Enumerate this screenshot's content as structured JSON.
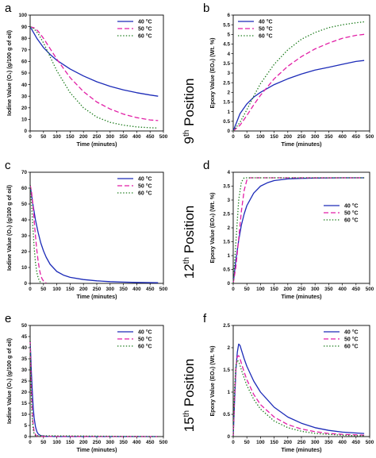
{
  "series_styles": [
    {
      "name": "40 °C",
      "color": "#1c2bb8",
      "dash": ""
    },
    {
      "name": "50 °C",
      "color": "#e21fa6",
      "dash": "6,3"
    },
    {
      "name": "60 °C",
      "color": "#1a7a1a",
      "dash": "1.4,2.2"
    }
  ],
  "positions": [
    {
      "ordinal": "9",
      "suffix": "th",
      "word": " Position"
    },
    {
      "ordinal": "12",
      "suffix": "th",
      "word": " Position"
    },
    {
      "ordinal": "15",
      "suffix": "th",
      "word": " Position"
    }
  ],
  "chart_data": [
    {
      "panel": "a",
      "type": "line",
      "xlabel": "Time (minutes)",
      "ylabel": "Iodine Value (O₁) (g/100 g of oil)",
      "xlim": [
        0,
        500
      ],
      "ylim": [
        0,
        100
      ],
      "xticks": [
        0,
        50,
        100,
        150,
        200,
        250,
        300,
        350,
        400,
        450,
        500
      ],
      "yticks": [
        0,
        10,
        20,
        30,
        40,
        50,
        60,
        70,
        80,
        90,
        100
      ],
      "legend": "top-right",
      "series": [
        {
          "name": "40 °C",
          "x": [
            0,
            25,
            50,
            75,
            100,
            150,
            200,
            250,
            300,
            350,
            400,
            450,
            480
          ],
          "y": [
            90,
            80,
            72,
            66,
            61,
            53.5,
            47.5,
            42.5,
            38.5,
            35.5,
            33,
            31,
            30
          ]
        },
        {
          "name": "50 °C",
          "x": [
            0,
            15,
            30,
            50,
            75,
            100,
            150,
            200,
            250,
            300,
            350,
            400,
            450,
            480
          ],
          "y": [
            90,
            89,
            86,
            80,
            71,
            62,
            46,
            34,
            25,
            19,
            14.5,
            11.5,
            9.5,
            9
          ]
        },
        {
          "name": "60 °C",
          "x": [
            0,
            15,
            30,
            50,
            75,
            100,
            150,
            200,
            250,
            300,
            350,
            400,
            450,
            480
          ],
          "y": [
            90,
            88,
            84,
            76,
            64,
            52,
            33,
            20,
            12,
            7.5,
            5,
            3.5,
            2.8,
            2.5
          ]
        }
      ]
    },
    {
      "panel": "b",
      "type": "line",
      "xlabel": "Time (minutes)",
      "ylabel": "Epoxy Value (EO₂) (Wt. %)",
      "xlim": [
        0,
        500
      ],
      "ylim": [
        0,
        6
      ],
      "xticks": [
        0,
        50,
        100,
        150,
        200,
        250,
        300,
        350,
        400,
        450,
        500
      ],
      "yticks": [
        0,
        0.5,
        1,
        1.5,
        2,
        2.5,
        3,
        3.5,
        4,
        4.5,
        5,
        5.5,
        6
      ],
      "legend": "top-left",
      "series": [
        {
          "name": "40 °C",
          "x": [
            0,
            25,
            50,
            75,
            100,
            150,
            200,
            250,
            300,
            350,
            400,
            450,
            480
          ],
          "y": [
            0,
            0.9,
            1.4,
            1.75,
            2.0,
            2.4,
            2.7,
            2.95,
            3.15,
            3.3,
            3.45,
            3.6,
            3.65
          ]
        },
        {
          "name": "50 °C",
          "x": [
            0,
            25,
            50,
            75,
            100,
            150,
            200,
            250,
            300,
            350,
            400,
            450,
            480
          ],
          "y": [
            0,
            0.3,
            0.8,
            1.35,
            1.85,
            2.7,
            3.35,
            3.85,
            4.25,
            4.55,
            4.8,
            4.95,
            5.0
          ]
        },
        {
          "name": "60 °C",
          "x": [
            0,
            25,
            50,
            75,
            100,
            150,
            200,
            250,
            300,
            350,
            400,
            450,
            480
          ],
          "y": [
            0,
            0.45,
            1.1,
            1.8,
            2.45,
            3.45,
            4.2,
            4.75,
            5.1,
            5.35,
            5.5,
            5.6,
            5.65
          ]
        }
      ]
    },
    {
      "panel": "c",
      "type": "line",
      "xlabel": "Time (minutes)",
      "ylabel": "Iodine Value (O₁) (g/100 g of oil)",
      "xlim": [
        0,
        500
      ],
      "ylim": [
        0,
        70
      ],
      "xticks": [
        0,
        50,
        100,
        150,
        200,
        250,
        300,
        350,
        400,
        450,
        500
      ],
      "yticks": [
        0,
        10,
        20,
        30,
        40,
        50,
        60,
        70
      ],
      "legend": "top-right",
      "series": [
        {
          "name": "40 °C",
          "x": [
            0,
            10,
            20,
            30,
            40,
            50,
            60,
            75,
            100,
            125,
            150,
            200,
            250,
            300,
            350,
            400,
            480
          ],
          "y": [
            62,
            50,
            40,
            32,
            25.5,
            20.5,
            16.5,
            12,
            7.5,
            5.2,
            3.8,
            2.4,
            1.6,
            1.1,
            0.8,
            0.6,
            0.4
          ]
        },
        {
          "name": "50 °C",
          "x": [
            0,
            5,
            10,
            15,
            20,
            25,
            30,
            35,
            40,
            45,
            50,
            55,
            60
          ],
          "y": [
            62,
            58,
            50,
            40,
            30,
            21,
            14,
            8.5,
            5,
            2.8,
            1.5,
            0.7,
            0.3
          ]
        },
        {
          "name": "60 °C",
          "x": [
            0,
            5,
            10,
            15,
            20,
            25,
            30,
            35,
            40
          ],
          "y": [
            62,
            50,
            36,
            23,
            13,
            7,
            3.5,
            1.5,
            0.5
          ]
        }
      ]
    },
    {
      "panel": "d",
      "type": "line",
      "xlabel": "Time (minutes)",
      "ylabel": "Epoxy Value (EO₂) (Wt. %)",
      "xlim": [
        0,
        500
      ],
      "ylim": [
        0,
        4
      ],
      "xticks": [
        0,
        50,
        100,
        150,
        200,
        250,
        300,
        350,
        400,
        450,
        500
      ],
      "yticks": [
        0,
        0.5,
        1,
        1.5,
        2,
        2.5,
        3,
        3.5,
        4
      ],
      "legend": "right",
      "series": [
        {
          "name": "40 °C",
          "x": [
            0,
            10,
            20,
            30,
            40,
            50,
            75,
            100,
            125,
            150,
            200,
            250,
            300,
            400,
            480
          ],
          "y": [
            0,
            0.85,
            1.55,
            2.1,
            2.5,
            2.8,
            3.25,
            3.5,
            3.62,
            3.7,
            3.76,
            3.78,
            3.79,
            3.8,
            3.8
          ]
        },
        {
          "name": "50 °C",
          "x": [
            0,
            10,
            20,
            30,
            40,
            50,
            60,
            80,
            480
          ],
          "y": [
            0,
            0.6,
            1.6,
            2.6,
            3.35,
            3.72,
            3.8,
            3.8,
            3.8
          ]
        },
        {
          "name": "60 °C",
          "x": [
            0,
            10,
            20,
            30,
            40,
            50,
            480
          ],
          "y": [
            0,
            1.5,
            3.0,
            3.65,
            3.8,
            3.8,
            3.8
          ]
        }
      ]
    },
    {
      "panel": "e",
      "type": "line",
      "xlabel": "Time (minutes)",
      "ylabel": "Iodine Value (O₁) (g/100 g of oil)",
      "xlim": [
        0,
        500
      ],
      "ylim": [
        0,
        50
      ],
      "xticks": [
        0,
        50,
        100,
        150,
        200,
        250,
        300,
        350,
        400,
        450,
        500
      ],
      "yticks": [
        0,
        5,
        10,
        15,
        20,
        25,
        30,
        35,
        40,
        45,
        50
      ],
      "legend": "top-right",
      "series": [
        {
          "name": "40 °C",
          "x": [
            0,
            2,
            4,
            6,
            8,
            10,
            12,
            15,
            20,
            25,
            30,
            40,
            60,
            100,
            480
          ],
          "y": [
            43,
            37,
            31,
            25.5,
            20.5,
            16,
            12.5,
            8.5,
            4.5,
            2.3,
            1.2,
            0.4,
            0.1,
            0,
            0
          ]
        },
        {
          "name": "50 °C",
          "x": [
            0,
            2,
            4,
            6,
            8,
            10,
            12,
            15,
            20,
            25,
            30,
            480
          ],
          "y": [
            43,
            33,
            24,
            17,
            11.5,
            7.5,
            4.8,
            2.5,
            0.9,
            0.3,
            0.1,
            0
          ]
        },
        {
          "name": "60 °C",
          "x": [
            0,
            2,
            4,
            6,
            8,
            10,
            12,
            15,
            20,
            480
          ],
          "y": [
            43,
            30,
            20,
            13,
            8,
            4.8,
            2.8,
            1.3,
            0.4,
            0
          ]
        }
      ]
    },
    {
      "panel": "f",
      "type": "line",
      "xlabel": "Time (minutes)",
      "ylabel": "Epoxy Value (EO₂) (Wt. %)",
      "xlim": [
        0,
        500
      ],
      "ylim": [
        0,
        2.5
      ],
      "xticks": [
        0,
        50,
        100,
        150,
        200,
        250,
        300,
        350,
        400,
        450,
        500
      ],
      "yticks": [
        0,
        0.5,
        1,
        1.5,
        2,
        2.5
      ],
      "legend": "top-right",
      "series": [
        {
          "name": "40 °C",
          "x": [
            0,
            5,
            10,
            15,
            20,
            25,
            30,
            40,
            50,
            75,
            100,
            150,
            200,
            250,
            300,
            350,
            400,
            450,
            480
          ],
          "y": [
            0,
            0.8,
            1.5,
            1.9,
            2.08,
            2.05,
            1.95,
            1.75,
            1.58,
            1.25,
            1.0,
            0.66,
            0.44,
            0.3,
            0.2,
            0.14,
            0.1,
            0.08,
            0.07
          ]
        },
        {
          "name": "50 °C",
          "x": [
            0,
            5,
            10,
            15,
            20,
            25,
            30,
            40,
            50,
            75,
            100,
            150,
            200,
            250,
            300,
            350,
            400,
            450,
            480
          ],
          "y": [
            0,
            0.9,
            1.55,
            1.8,
            1.82,
            1.75,
            1.65,
            1.45,
            1.28,
            0.95,
            0.72,
            0.44,
            0.27,
            0.17,
            0.11,
            0.07,
            0.05,
            0.04,
            0.03
          ]
        },
        {
          "name": "60 °C",
          "x": [
            0,
            5,
            10,
            15,
            20,
            25,
            30,
            40,
            50,
            75,
            100,
            150,
            200,
            250,
            300,
            350,
            400,
            450,
            480
          ],
          "y": [
            0,
            1.1,
            1.6,
            1.72,
            1.68,
            1.6,
            1.5,
            1.32,
            1.15,
            0.84,
            0.62,
            0.35,
            0.2,
            0.12,
            0.07,
            0.05,
            0.03,
            0.02,
            0.02
          ]
        }
      ]
    }
  ]
}
